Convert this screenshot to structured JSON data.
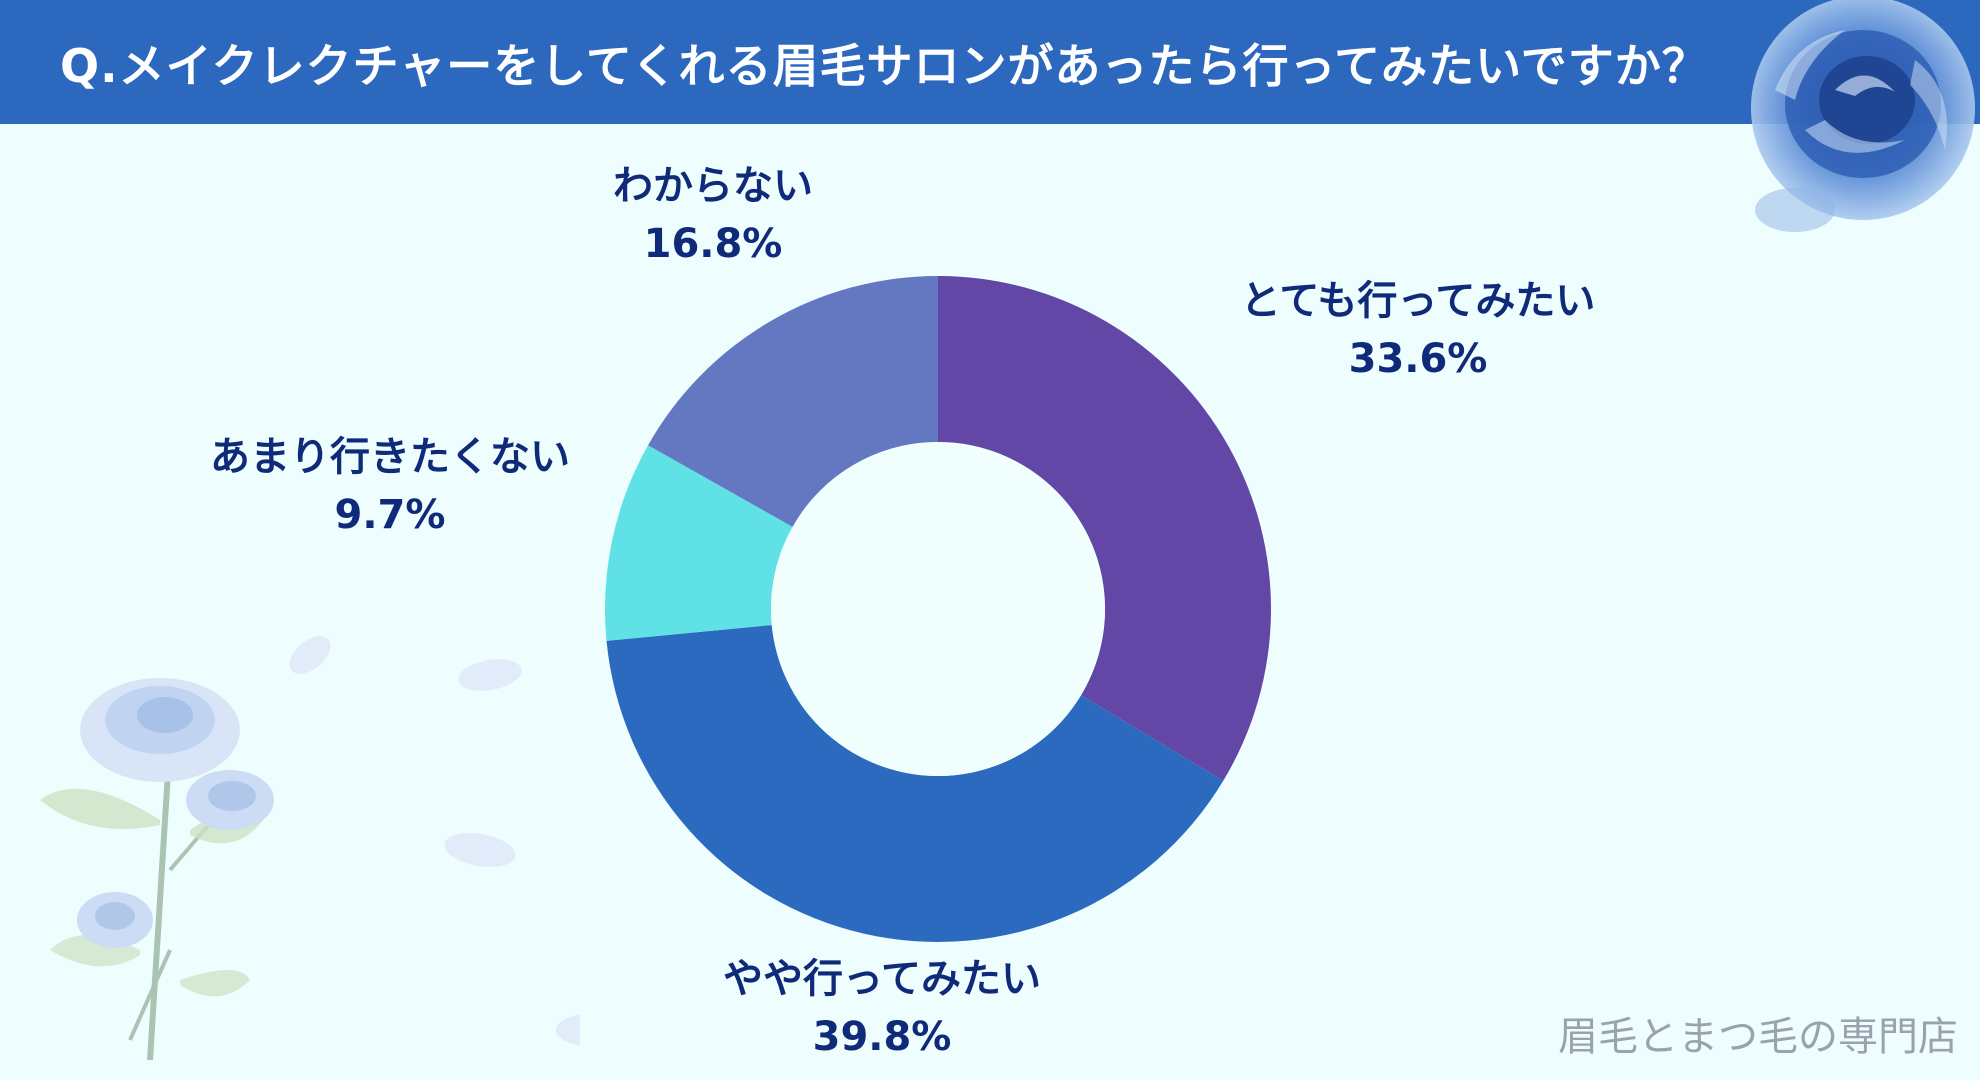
{
  "header": {
    "title": "Q.メイクレクチャーをしてくれる眉毛サロンがあったら行ってみたいですか？"
  },
  "watermark": "眉毛とまつ毛の専門店",
  "chart_data": {
    "type": "pie",
    "donut": true,
    "start_angle_deg": 0,
    "direction": "clockwise",
    "slices": [
      {
        "label": "とても行ってみたい",
        "value": 33.6,
        "value_label": "33.6%",
        "color": "#6347a6"
      },
      {
        "label": "やや行ってみたい",
        "value": 39.8,
        "value_label": "39.8%",
        "color": "#2c6abf"
      },
      {
        "label": "あまり行きたくない",
        "value": 9.7,
        "value_label": "9.7%",
        "color": "#5fe1e6"
      },
      {
        "label": "わからない",
        "value": 16.8,
        "value_label": "16.8%",
        "color": "#6378c0"
      }
    ]
  },
  "colors": {
    "header_bg": "#2c68be",
    "background": "#eefdfd",
    "label_text": "#102a7a",
    "donut_hole": "#f0fefe"
  },
  "decorations": [
    "blue-rose-corner",
    "blue-rose-stems",
    "petals"
  ]
}
